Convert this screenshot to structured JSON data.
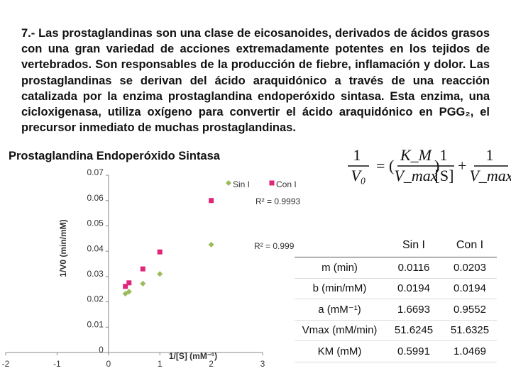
{
  "text": {
    "paragraph": "7.- Las prostaglandinas son una clase de eicosanoides, derivados de ácidos grasos con una gran variedad de acciones extremadamente potentes en los tejidos de vertebrados. Son responsables de la producción de fiebre, inflamación y dolor. Las prostaglandinas se derivan del ácido araquidónico a través de una reacción catalizada por la enzima prostaglandina endoperóxido sintasa. Esta enzima, una cicloxigenasa, utiliza oxígeno para convertir el ácido araquidónico en PGG₂, el precursor inmediato de muchas prostaglandinas.",
    "heading": "Prostaglandina Endoperóxido Sintasa"
  },
  "equation": {
    "lhs_num": "1",
    "lhs_den": "V₀",
    "equals": "=",
    "coef_num": "K_M",
    "coef_den": "V_max",
    "var_num": "1",
    "var_den": "[S]",
    "plus": "+",
    "const_num": "1",
    "const_den": "V_max"
  },
  "chart_data": {
    "type": "scatter",
    "x_label": "1/[S] (mM⁻¹)",
    "y_label": "1/V0 (min/mM)",
    "series": [
      {
        "name": "Sin I",
        "color": "#9bbb59",
        "marker": "diamond",
        "x": [
          0.33,
          0.4,
          0.67,
          1,
          2
        ],
        "values": [
          0.0232,
          0.024,
          0.0272,
          0.031,
          0.0426
        ]
      },
      {
        "name": "Con I",
        "color": "#e0267a",
        "marker": "square",
        "x": [
          0.33,
          0.4,
          0.67,
          1,
          2
        ],
        "values": [
          0.0261,
          0.0275,
          0.033,
          0.0397,
          0.06
        ]
      }
    ],
    "annotations": [
      "R² = 0.9993",
      "R² = 0.999"
    ],
    "xlim": [
      -2,
      3
    ],
    "xticks": [
      -2,
      -1,
      0,
      1,
      2,
      3
    ],
    "ylim": [
      0,
      0.07
    ],
    "yticks": [
      0,
      0.01,
      0.02,
      0.03,
      0.04,
      0.05,
      0.06,
      0.07
    ],
    "grid": false
  },
  "table": {
    "header": [
      "Sin I",
      "Con I"
    ],
    "rows": [
      [
        "m (min)",
        "0.0116",
        "0.0203"
      ],
      [
        "b (min/mM)",
        "0.0194",
        "0.0194"
      ],
      [
        "a (mM⁻¹)",
        "1.6693",
        "0.9552"
      ],
      [
        "Vmax (mM/min)",
        "51.6245",
        "51.6325"
      ],
      [
        "KM (mM)",
        "0.5991",
        "1.0469"
      ]
    ]
  }
}
